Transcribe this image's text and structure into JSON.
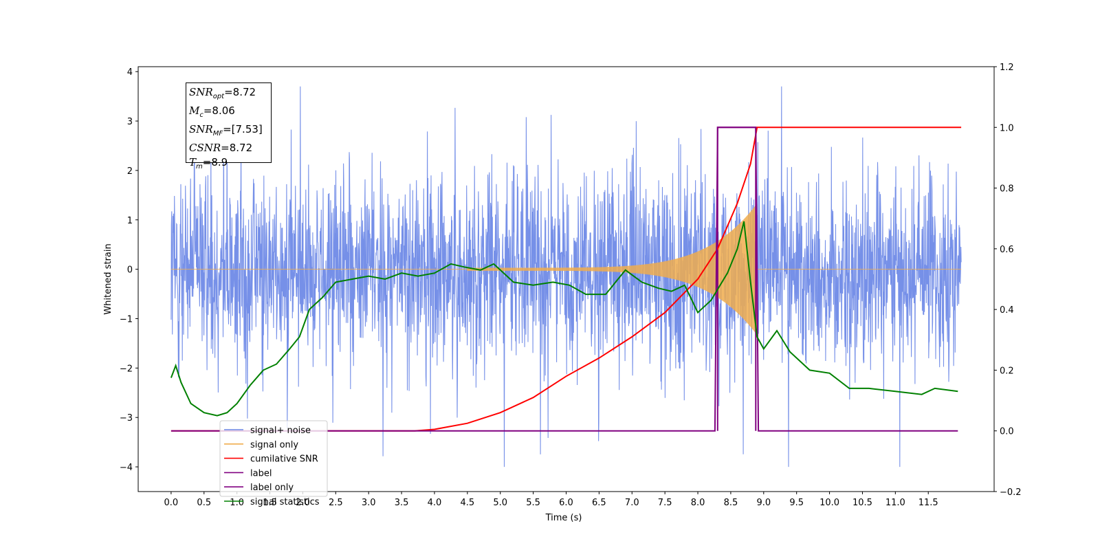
{
  "chart_data": {
    "type": "line",
    "title": "",
    "xlabel": "Time (s)",
    "ylabel": "Whitened strain",
    "xlim": [
      -0.5,
      12.5
    ],
    "ylim": [
      -4.5,
      4.1
    ],
    "ylim_right": [
      -0.2,
      1.2
    ],
    "x_ticks": [
      "0.0",
      "0.5",
      "1.0",
      "1.5",
      "2.0",
      "2.5",
      "3.0",
      "3.5",
      "4.0",
      "4.5",
      "5.0",
      "5.5",
      "6.0",
      "6.5",
      "7.0",
      "7.5",
      "8.0",
      "8.5",
      "9.0",
      "9.5",
      "10.0",
      "10.5",
      "11.0",
      "11.5"
    ],
    "y_ticks_left": [
      "−4",
      "−3",
      "−2",
      "−1",
      "0",
      "1",
      "2",
      "3",
      "4"
    ],
    "y_ticks_right": [
      "−0.2",
      "0.0",
      "0.2",
      "0.4",
      "0.6",
      "0.8",
      "1.0",
      "1.2"
    ],
    "grid": false,
    "legend_position": "lower-left",
    "colors": {
      "signal_noise": "#6a87e6",
      "signal_only": "#f0ad4e",
      "cumulative_snr": "#ff0000",
      "label": "#800080",
      "label_only": "#800080",
      "signal_statistics": "#008000"
    },
    "series": [
      {
        "name": "signal+ noise",
        "axis": "left",
        "x_range": [
          0.0,
          12.0
        ],
        "min": -4.0,
        "max": 3.7,
        "typical_amplitude": 2.2
      },
      {
        "name": "signal only",
        "axis": "left",
        "x_range": [
          0.0,
          12.0
        ],
        "chirp_start": 4.5,
        "chirp_peak": 8.9,
        "peak_amplitude": 1.3
      },
      {
        "name": "cumilative SNR",
        "axis": "right",
        "x": [
          0.0,
          3.7,
          4.0,
          4.5,
          5.0,
          5.5,
          6.0,
          6.5,
          7.0,
          7.5,
          8.0,
          8.3,
          8.6,
          8.8,
          8.9,
          12.0
        ],
        "y": [
          0.0,
          0.0,
          0.005,
          0.025,
          0.06,
          0.11,
          0.18,
          0.24,
          0.31,
          0.39,
          0.5,
          0.6,
          0.75,
          0.88,
          1.0,
          1.0
        ]
      },
      {
        "name": "label",
        "axis": "right",
        "x": [
          0.0,
          8.26,
          8.3,
          8.88,
          8.92,
          11.95
        ],
        "y": [
          0.0,
          0.0,
          1.0,
          1.0,
          0.0,
          0.0
        ]
      },
      {
        "name": "label only",
        "axis": "right",
        "x": [
          8.3,
          8.3,
          8.88,
          8.88
        ],
        "y": [
          0.0,
          1.0,
          1.0,
          0.0
        ]
      },
      {
        "name": "signal statistics",
        "axis": "right",
        "x": [
          0.0,
          0.07,
          0.15,
          0.3,
          0.5,
          0.7,
          0.85,
          1.0,
          1.2,
          1.4,
          1.6,
          1.8,
          1.95,
          2.1,
          2.3,
          2.5,
          2.75,
          3.0,
          3.25,
          3.5,
          3.75,
          4.0,
          4.25,
          4.45,
          4.7,
          4.9,
          5.2,
          5.5,
          5.8,
          6.05,
          6.3,
          6.6,
          6.9,
          7.15,
          7.4,
          7.6,
          7.8,
          8.0,
          8.2,
          8.45,
          8.6,
          8.7,
          8.8,
          8.9,
          9.0,
          9.2,
          9.4,
          9.7,
          10.0,
          10.3,
          10.6,
          11.0,
          11.4,
          11.6,
          11.95
        ],
        "y": [
          0.175,
          0.215,
          0.16,
          0.09,
          0.06,
          0.05,
          0.06,
          0.09,
          0.15,
          0.2,
          0.22,
          0.27,
          0.31,
          0.4,
          0.44,
          0.49,
          0.5,
          0.51,
          0.5,
          0.52,
          0.51,
          0.52,
          0.55,
          0.54,
          0.53,
          0.55,
          0.49,
          0.48,
          0.49,
          0.48,
          0.45,
          0.45,
          0.53,
          0.49,
          0.47,
          0.46,
          0.48,
          0.39,
          0.43,
          0.52,
          0.6,
          0.69,
          0.49,
          0.31,
          0.27,
          0.33,
          0.26,
          0.2,
          0.19,
          0.14,
          0.14,
          0.13,
          0.12,
          0.14,
          0.13
        ]
      }
    ],
    "annotation": {
      "snr_opt": "=8.72",
      "mc": "=8.06",
      "snr_mf": "=[7.53]",
      "csnr": "=8.72",
      "tm": "=8.9"
    }
  }
}
